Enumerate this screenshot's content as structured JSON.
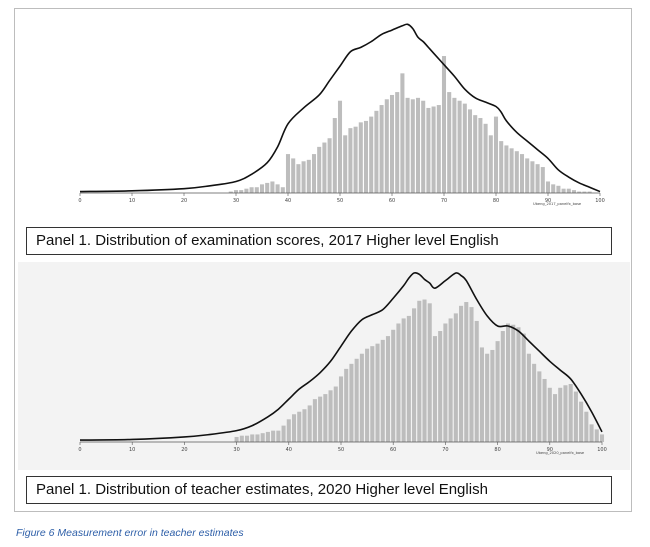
{
  "chart_data": [
    {
      "type": "bar",
      "variable_label": "Ubeng_2017_panelfx_base",
      "xlim": [
        0,
        100
      ],
      "x_ticks": [
        "0",
        "10",
        "20",
        "30",
        "40",
        "50",
        "60",
        "70",
        "80",
        "90",
        "100"
      ],
      "bar_color": "#bdbdbd",
      "density_color": "#111111",
      "grid": false,
      "x": [
        29,
        30,
        31,
        32,
        33,
        34,
        35,
        36,
        37,
        38,
        39,
        40,
        41,
        42,
        43,
        44,
        45,
        46,
        47,
        48,
        49,
        50,
        51,
        52,
        53,
        54,
        55,
        56,
        57,
        58,
        59,
        60,
        61,
        62,
        63,
        64,
        65,
        66,
        67,
        68,
        69,
        70,
        71,
        72,
        73,
        74,
        75,
        76,
        77,
        78,
        79,
        80,
        81,
        82,
        83,
        84,
        85,
        86,
        87,
        88,
        89,
        90,
        91,
        92,
        93,
        94,
        95,
        96,
        97,
        98,
        99,
        100
      ],
      "values": [
        1,
        2,
        2,
        3,
        4,
        4,
        6,
        7,
        8,
        6,
        4,
        27,
        24,
        20,
        22,
        23,
        27,
        32,
        35,
        38,
        52,
        64,
        40,
        45,
        46,
        49,
        50,
        53,
        57,
        61,
        65,
        68,
        70,
        83,
        66,
        65,
        66,
        64,
        59,
        60,
        61,
        95,
        70,
        66,
        64,
        62,
        58,
        54,
        52,
        48,
        40,
        53,
        36,
        33,
        31,
        29,
        27,
        24,
        22,
        20,
        18,
        8,
        6,
        5,
        3,
        3,
        2,
        1,
        1,
        1,
        0,
        0
      ],
      "density": [
        [
          0,
          1
        ],
        [
          10,
          1.5
        ],
        [
          20,
          3
        ],
        [
          25,
          5
        ],
        [
          30,
          8
        ],
        [
          33,
          13
        ],
        [
          36,
          21
        ],
        [
          38,
          32
        ],
        [
          40,
          48
        ],
        [
          43,
          59
        ],
        [
          46,
          68
        ],
        [
          48,
          78
        ],
        [
          50,
          88
        ],
        [
          52,
          98
        ],
        [
          54,
          101
        ],
        [
          56,
          105
        ],
        [
          58,
          110
        ],
        [
          60,
          113
        ],
        [
          62,
          116
        ],
        [
          63,
          117
        ],
        [
          64,
          114
        ],
        [
          65,
          108
        ],
        [
          66,
          105
        ],
        [
          67,
          101
        ],
        [
          68,
          97
        ],
        [
          70,
          89
        ],
        [
          72,
          81
        ],
        [
          74,
          72
        ],
        [
          76,
          66
        ],
        [
          78,
          63
        ],
        [
          80,
          60
        ],
        [
          81,
          56
        ],
        [
          82,
          50
        ],
        [
          84,
          42
        ],
        [
          86,
          36
        ],
        [
          88,
          30
        ],
        [
          90,
          24
        ],
        [
          92,
          16
        ],
        [
          94,
          11
        ],
        [
          96,
          7
        ],
        [
          98,
          4
        ],
        [
          100,
          1
        ]
      ]
    },
    {
      "type": "bar",
      "variable_label": "Ubeng_2020_panelfx_base",
      "xlim": [
        0,
        100
      ],
      "x_ticks": [
        "0",
        "10",
        "20",
        "30",
        "40",
        "50",
        "60",
        "70",
        "80",
        "90",
        "100"
      ],
      "bar_color": "#bdbdbd",
      "density_color": "#111111",
      "grid": false,
      "x": [
        30,
        31,
        32,
        33,
        34,
        35,
        36,
        37,
        38,
        39,
        40,
        41,
        42,
        43,
        44,
        45,
        46,
        47,
        48,
        49,
        50,
        51,
        52,
        53,
        54,
        55,
        56,
        57,
        58,
        59,
        60,
        61,
        62,
        63,
        64,
        65,
        66,
        67,
        68,
        69,
        70,
        71,
        72,
        73,
        74,
        75,
        76,
        77,
        78,
        79,
        80,
        81,
        82,
        83,
        84,
        85,
        86,
        87,
        88,
        89,
        90,
        91,
        92,
        93,
        94,
        95,
        96,
        97,
        98,
        99,
        100
      ],
      "values": [
        4,
        5,
        5,
        6,
        6,
        7,
        8,
        9,
        9,
        13,
        18,
        22,
        24,
        26,
        29,
        34,
        36,
        38,
        41,
        44,
        52,
        58,
        62,
        66,
        70,
        74,
        76,
        78,
        81,
        84,
        89,
        94,
        98,
        100,
        106,
        112,
        113,
        110,
        84,
        88,
        94,
        98,
        102,
        108,
        111,
        107,
        96,
        75,
        70,
        73,
        80,
        88,
        94,
        93,
        91,
        86,
        70,
        62,
        56,
        50,
        43,
        38,
        43,
        45,
        46,
        40,
        32,
        24,
        14,
        10,
        6
      ],
      "density": [
        [
          0,
          1.5
        ],
        [
          10,
          2
        ],
        [
          20,
          4
        ],
        [
          25,
          6
        ],
        [
          30,
          9
        ],
        [
          33,
          13
        ],
        [
          36,
          20
        ],
        [
          38,
          26
        ],
        [
          40,
          34
        ],
        [
          42,
          42
        ],
        [
          44,
          48
        ],
        [
          46,
          55
        ],
        [
          48,
          64
        ],
        [
          50,
          76
        ],
        [
          52,
          88
        ],
        [
          54,
          97
        ],
        [
          56,
          101
        ],
        [
          58,
          105
        ],
        [
          60,
          114
        ],
        [
          62,
          124
        ],
        [
          63,
          130
        ],
        [
          64,
          134
        ],
        [
          65,
          133
        ],
        [
          66,
          129
        ],
        [
          67,
          126
        ],
        [
          68,
          122
        ],
        [
          70,
          128
        ],
        [
          72,
          134
        ],
        [
          73,
          132
        ],
        [
          74,
          128
        ],
        [
          76,
          113
        ],
        [
          78,
          100
        ],
        [
          80,
          92
        ],
        [
          82,
          92
        ],
        [
          84,
          88
        ],
        [
          86,
          80
        ],
        [
          88,
          72
        ],
        [
          90,
          64
        ],
        [
          92,
          57
        ],
        [
          94,
          50
        ],
        [
          96,
          38
        ],
        [
          98,
          24
        ],
        [
          100,
          8
        ]
      ]
    }
  ],
  "captions": {
    "panel_top": "Panel 1. Distribution of examination scores, 2017 Higher level English",
    "panel_bottom": "Panel 1. Distribution of teacher estimates, 2020 Higher level English",
    "figure": "Figure 6 Measurement error in teacher estimates"
  }
}
